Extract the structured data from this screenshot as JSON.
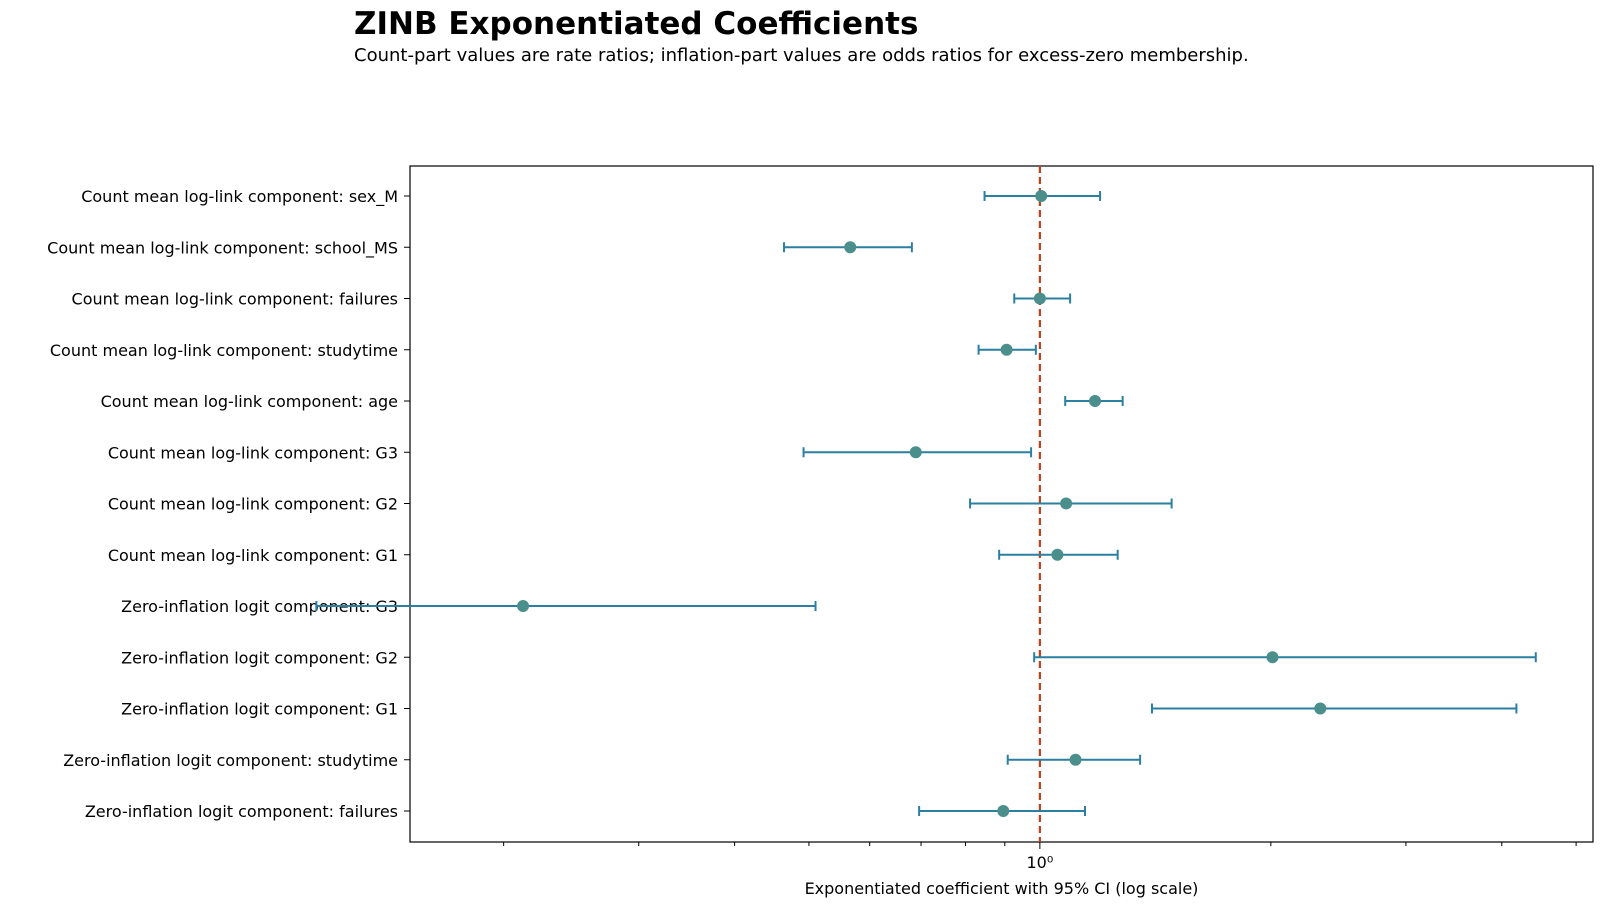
{
  "title": "ZINB Exponentiated Coefficients",
  "subtitle": "Count-part values are rate ratios; inflation-part values are odds ratios for excess-zero membership.",
  "chart_data": {
    "type": "scatter",
    "subtype": "forest",
    "title": "ZINB Exponentiated Coefficients",
    "subtitle": "Count-part values are rate ratios; inflation-part values are odds ratios for excess-zero membership.",
    "xlabel": "Exponentiated coefficient with 95% CI (log scale)",
    "x_scale": "log",
    "xlim": [
      0.151,
      5.26
    ],
    "x_ticks": [
      {
        "value": 1,
        "label": "10⁰"
      }
    ],
    "reference_line": 1,
    "point_color": "#4a8f8c",
    "error_color": "#2b7fa0",
    "ref_color": "#c0401a",
    "series": [
      {
        "categories": [
          "Count mean log-link component: sex_M",
          "Count mean log-link component: school_MS",
          "Count mean log-link component: failures",
          "Count mean log-link component: studytime",
          "Count mean log-link component: age",
          "Count mean log-link component: G3",
          "Count mean log-link component: G2",
          "Count mean log-link component: G1",
          "Zero-inflation logit component: G3",
          "Zero-inflation logit component: G2",
          "Zero-inflation logit component: G1",
          "Zero-inflation logit component: studytime",
          "Zero-inflation logit component: failures"
        ],
        "estimate": [
          1.004,
          0.566,
          1.0,
          0.905,
          1.18,
          0.689,
          1.082,
          1.054,
          0.212,
          2.01,
          2.32,
          1.113,
          0.896
        ],
        "ci_low": [
          0.847,
          0.464,
          0.926,
          0.832,
          1.079,
          0.492,
          0.811,
          0.885,
          0.114,
          0.983,
          1.4,
          0.908,
          0.696
        ],
        "ci_high": [
          1.198,
          0.681,
          1.095,
          0.988,
          1.282,
          0.974,
          1.485,
          1.263,
          0.51,
          4.43,
          4.18,
          1.351,
          1.145
        ]
      }
    ]
  }
}
